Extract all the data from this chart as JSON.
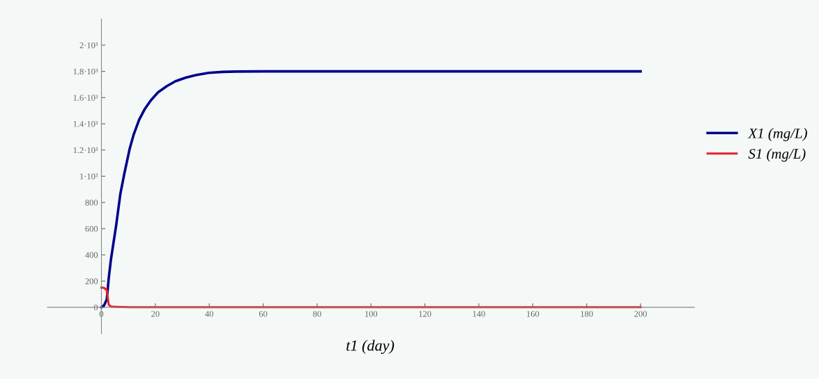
{
  "chart_data": {
    "type": "line",
    "xlabel": "t1 (day)",
    "x": [
      0,
      1,
      2,
      2.7,
      3.5,
      4.5,
      5.5,
      7,
      8.5,
      10.5,
      12,
      14,
      16,
      18.3,
      21,
      24.3,
      27.5,
      31.2,
      35,
      39.8,
      45,
      50,
      60,
      80,
      100,
      150,
      200
    ],
    "series": [
      {
        "name": "X1 (mg/L)",
        "color": "#00008b",
        "values": [
          0,
          15,
          60,
          220,
          360,
          495,
          630,
          862,
          1020,
          1211,
          1320,
          1431,
          1510,
          1578,
          1640,
          1688,
          1725,
          1752,
          1772,
          1789,
          1796,
          1799,
          1800,
          1800,
          1800,
          1800,
          1800
        ]
      },
      {
        "name": "S1 (mg/L)",
        "color": "#e8202a",
        "values": [
          150,
          148,
          130,
          20,
          6,
          4,
          3,
          2,
          2,
          1,
          1,
          1,
          1,
          1,
          1,
          1,
          1,
          1,
          1,
          1,
          1,
          1,
          1,
          1,
          1,
          1,
          1
        ]
      }
    ],
    "xlim": [
      -20,
      220
    ],
    "ylim": [
      -200,
      2200
    ],
    "xticks": [
      0,
      20,
      40,
      60,
      80,
      100,
      120,
      140,
      160,
      180,
      200
    ],
    "yticks": [
      0,
      200,
      400,
      600,
      800,
      {
        "value": 1000,
        "label": "1·10³"
      },
      {
        "value": 1200,
        "label": "1.2·10³"
      },
      {
        "value": 1400,
        "label": "1.4·10³"
      },
      {
        "value": 1600,
        "label": "1.6·10³"
      },
      {
        "value": 1800,
        "label": "1.8·10³"
      },
      {
        "value": 2000,
        "label": "2·10³"
      }
    ],
    "grid": false,
    "legend": "right",
    "marker": "none",
    "line_style": "solid"
  }
}
